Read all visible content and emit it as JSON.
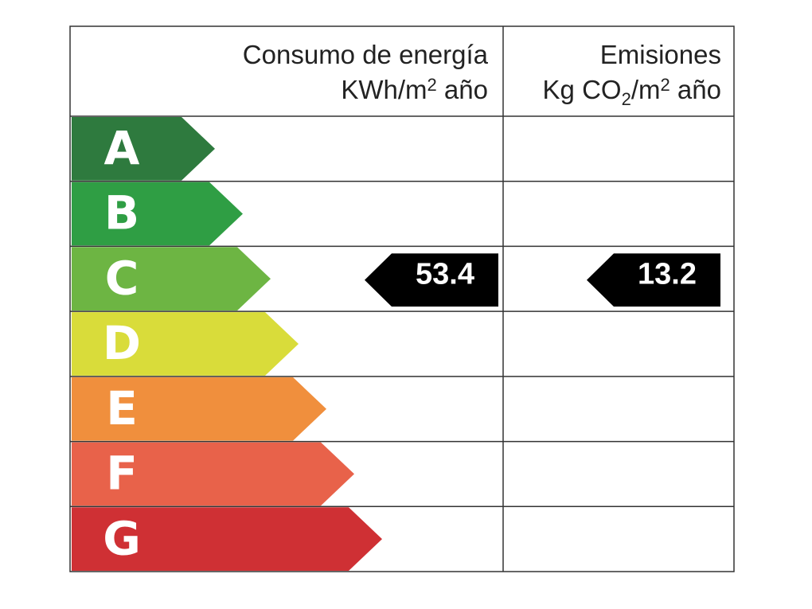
{
  "header": {
    "consumption": {
      "line1": "Consumo de energía",
      "unit": [
        "KWh/m",
        "2",
        " año"
      ]
    },
    "emissions": {
      "line1": "Emisiones",
      "unit": [
        "Kg CO",
        "2",
        "/m",
        "2",
        " año"
      ]
    }
  },
  "classes": [
    {
      "letter": "A",
      "color": "#2e7a3e"
    },
    {
      "letter": "B",
      "color": "#2f9e44"
    },
    {
      "letter": "C",
      "color": "#6db543"
    },
    {
      "letter": "D",
      "color": "#d9dc3a"
    },
    {
      "letter": "E",
      "color": "#f08f3d"
    },
    {
      "letter": "F",
      "color": "#e8624a"
    },
    {
      "letter": "G",
      "color": "#cf3034"
    }
  ],
  "consumption": {
    "value": 53.4,
    "rating": "C"
  },
  "emissions": {
    "value": 13.2,
    "rating": "C"
  }
}
